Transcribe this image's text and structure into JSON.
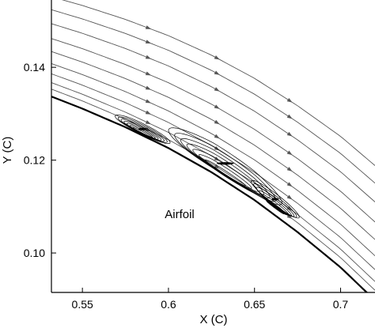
{
  "chart_data": {
    "type": "line",
    "title": "",
    "xlabel": "X (C)",
    "ylabel": "Y (C)",
    "xlim": [
      0.532,
      0.72
    ],
    "ylim": [
      0.0915,
      0.1545
    ],
    "x_ticks": [
      0.55,
      0.6,
      0.65,
      0.7
    ],
    "x_tick_labels": [
      "0.55",
      "0.6",
      "0.65",
      "0.7"
    ],
    "y_ticks": [
      0.1,
      0.12,
      0.14
    ],
    "y_tick_labels": [
      "0.10",
      "0.12",
      "0.14"
    ],
    "grid": false,
    "annotation": "Airfoil",
    "colors": {
      "lines": "#555555",
      "surface": "#000000",
      "axes": "#000000"
    },
    "airfoil_surface": {
      "x": [
        0.532,
        0.55,
        0.575,
        0.6,
        0.625,
        0.65,
        0.675,
        0.7,
        0.72
      ],
      "y": [
        0.1337,
        0.1311,
        0.1271,
        0.1226,
        0.1174,
        0.1114,
        0.1045,
        0.0969,
        0.0898
      ]
    },
    "series": [
      {
        "y_start": 0.1353
      },
      {
        "y_start": 0.1367
      },
      {
        "y_start": 0.1386
      },
      {
        "y_start": 0.1408
      },
      {
        "y_start": 0.1434
      },
      {
        "y_start": 0.1462
      },
      {
        "y_start": 0.1494
      },
      {
        "y_start": 0.1524
      },
      {
        "y_start": 0.1552
      }
    ],
    "separation_bubbles": [
      {
        "x_center": 0.585,
        "y_center": 0.1267,
        "half_length": 0.016,
        "thickness": 0.0012
      },
      {
        "x_center": 0.633,
        "y_center": 0.1193,
        "half_length": 0.033,
        "thickness": 0.0028
      },
      {
        "x_center": 0.662,
        "y_center": 0.1116,
        "half_length": 0.014,
        "thickness": 0.0013
      }
    ]
  }
}
